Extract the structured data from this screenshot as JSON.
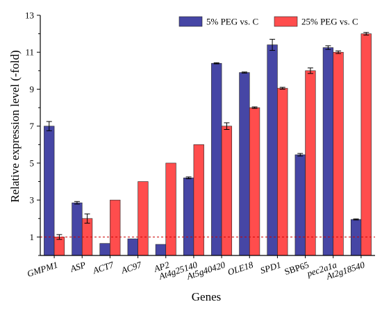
{
  "chart_data": {
    "type": "bar",
    "xlabel": "Genes",
    "ylabel": "Relative expression level (-fold)",
    "ylim": [
      0,
      13
    ],
    "yticks": [
      1,
      3,
      5,
      7,
      9,
      11,
      13
    ],
    "categories": [
      "GMPM1",
      "ASP",
      "ACT7",
      "AC97",
      "AP2",
      "At4g25140",
      "At5g40420",
      "OLE18",
      "SPD1",
      "SBP65",
      "pec2a1a",
      "At2g18540"
    ],
    "category_italic": [
      true,
      true,
      true,
      true,
      true,
      true,
      true,
      true,
      true,
      false,
      true,
      true
    ],
    "series": [
      {
        "name": "5% PEG vs. C",
        "color": "#4646a5",
        "values": [
          7.0,
          2.85,
          0.65,
          0.9,
          0.6,
          4.2,
          10.4,
          9.9,
          11.4,
          5.45,
          11.25,
          1.95
        ],
        "errors": [
          0.25,
          0.07,
          0.0,
          0.0,
          0.0,
          0.05,
          0.03,
          0.03,
          0.3,
          0.07,
          0.1,
          0.03
        ]
      },
      {
        "name": "25% PEG vs. C",
        "color": "#ff4d4d",
        "values": [
          1.0,
          2.0,
          3.0,
          4.0,
          5.0,
          6.0,
          7.0,
          8.0,
          9.05,
          10.0,
          11.0,
          12.0
        ],
        "errors": [
          0.13,
          0.25,
          0.0,
          0.0,
          0.0,
          0.0,
          0.18,
          0.04,
          0.05,
          0.15,
          0.07,
          0.07
        ]
      }
    ],
    "reference_line": {
      "y": 1,
      "color": "#cc0000",
      "style": "dashed"
    },
    "legend_position": "top-right",
    "grid": false
  }
}
